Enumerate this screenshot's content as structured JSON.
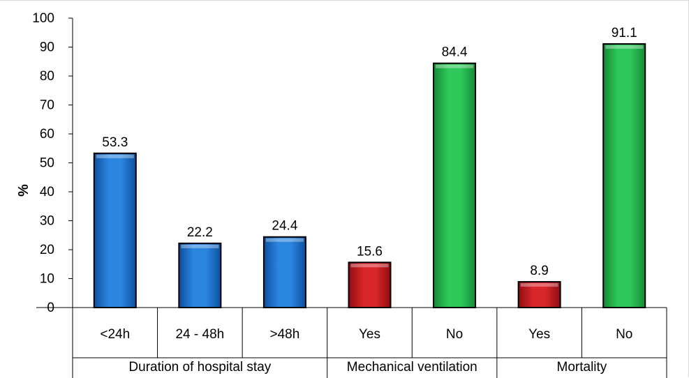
{
  "chart_data": {
    "type": "bar",
    "ylabel": "%",
    "ylim": [
      0,
      100
    ],
    "yticks": [
      "0",
      "10",
      "20",
      "30",
      "40",
      "50",
      "60",
      "70",
      "80",
      "90",
      "100"
    ],
    "grid": false,
    "legend": "none",
    "groups": [
      {
        "label": "Duration of hospital stay",
        "bars": [
          {
            "category": "<24h",
            "value": 53.3,
            "label": "53.3",
            "color": "#1f6fc7"
          },
          {
            "category": "24 - 48h",
            "value": 22.2,
            "label": "22.2",
            "color": "#1f6fc7"
          },
          {
            "category": ">48h",
            "value": 24.4,
            "label": "24.4",
            "color": "#1f6fc7"
          }
        ]
      },
      {
        "label": "Mechanical ventilation",
        "bars": [
          {
            "category": "Yes",
            "value": 15.6,
            "label": "15.6",
            "color": "#c0161b"
          },
          {
            "category": "No",
            "value": 84.4,
            "label": "84.4",
            "color": "#21b34a"
          }
        ]
      },
      {
        "label": "Mortality",
        "bars": [
          {
            "category": "Yes",
            "value": 8.9,
            "label": "8.9",
            "color": "#c0161b"
          },
          {
            "category": "No",
            "value": 91.1,
            "label": "91.1",
            "color": "#21b34a"
          }
        ]
      }
    ]
  }
}
